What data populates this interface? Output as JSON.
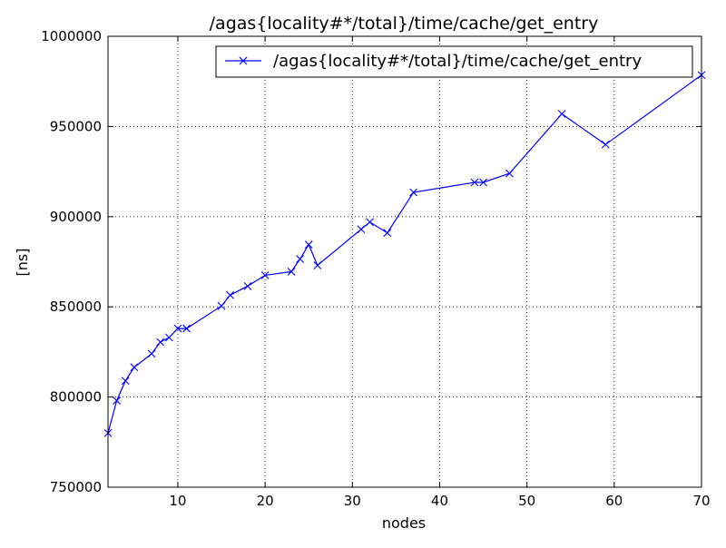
{
  "chart_data": {
    "type": "line",
    "title": "/agas{locality#*/total}/time/cache/get_entry",
    "xlabel": "nodes",
    "ylabel": "[ns]",
    "xlim": [
      2,
      70
    ],
    "ylim": [
      750000,
      1000000
    ],
    "x_ticks": [
      10,
      20,
      30,
      40,
      50,
      60,
      70
    ],
    "x_tick_labels": [
      "10",
      "20",
      "30",
      "40",
      "50",
      "60",
      "70"
    ],
    "y_ticks": [
      750000,
      800000,
      850000,
      900000,
      950000,
      1000000
    ],
    "y_tick_labels": [
      "750000",
      "800000",
      "850000",
      "900000",
      "950000",
      "1000000"
    ],
    "grid": true,
    "legend_position": "top-right",
    "series": [
      {
        "name": "/agas{locality#*/total}/time/cache/get_entry",
        "color": "#0000ff",
        "marker": "x",
        "x": [
          2,
          3,
          4,
          5,
          7,
          8,
          9,
          10,
          11,
          15,
          16,
          18,
          20,
          23,
          24,
          25,
          26,
          31,
          32,
          34,
          37,
          44,
          45,
          48,
          54,
          59,
          70
        ],
        "y": [
          780000,
          798000,
          809000,
          816500,
          824000,
          830500,
          833000,
          838000,
          838000,
          850500,
          856500,
          861500,
          867500,
          869500,
          876500,
          884500,
          873000,
          893000,
          897000,
          891000,
          913500,
          919000,
          919000,
          924000,
          957000,
          940000,
          978500
        ]
      }
    ]
  }
}
